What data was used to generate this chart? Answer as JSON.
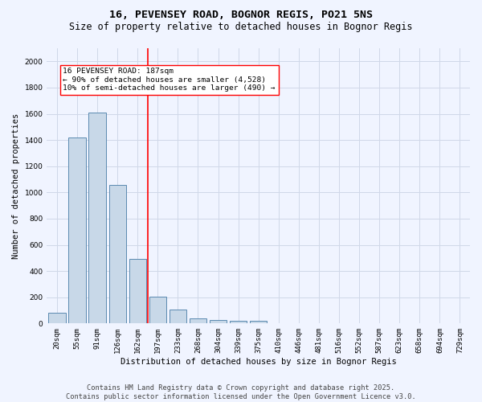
{
  "title": "16, PEVENSEY ROAD, BOGNOR REGIS, PO21 5NS",
  "subtitle": "Size of property relative to detached houses in Bognor Regis",
  "xlabel": "Distribution of detached houses by size in Bognor Regis",
  "ylabel": "Number of detached properties",
  "categories": [
    "20sqm",
    "55sqm",
    "91sqm",
    "126sqm",
    "162sqm",
    "197sqm",
    "233sqm",
    "268sqm",
    "304sqm",
    "339sqm",
    "375sqm",
    "410sqm",
    "446sqm",
    "481sqm",
    "516sqm",
    "552sqm",
    "587sqm",
    "623sqm",
    "658sqm",
    "694sqm",
    "729sqm"
  ],
  "values": [
    80,
    1420,
    1610,
    1060,
    490,
    205,
    105,
    40,
    25,
    20,
    20,
    0,
    0,
    0,
    0,
    0,
    0,
    0,
    0,
    0,
    0
  ],
  "bar_color": "#c8d8e8",
  "bar_edge_color": "#5b8ab0",
  "vline_index": 5,
  "vline_color": "red",
  "annotation_text": "16 PEVENSEY ROAD: 187sqm\n← 90% of detached houses are smaller (4,528)\n10% of semi-detached houses are larger (490) →",
  "annotation_box_color": "white",
  "annotation_box_edge_color": "red",
  "ylim": [
    0,
    2100
  ],
  "yticks": [
    0,
    200,
    400,
    600,
    800,
    1000,
    1200,
    1400,
    1600,
    1800,
    2000
  ],
  "grid_color": "#d0d8e8",
  "background_color": "#f0f4ff",
  "footer_line1": "Contains HM Land Registry data © Crown copyright and database right 2025.",
  "footer_line2": "Contains public sector information licensed under the Open Government Licence v3.0.",
  "title_fontsize": 9.5,
  "subtitle_fontsize": 8.5,
  "axis_label_fontsize": 7.5,
  "tick_fontsize": 6.5,
  "annotation_fontsize": 6.8,
  "footer_fontsize": 6.2
}
